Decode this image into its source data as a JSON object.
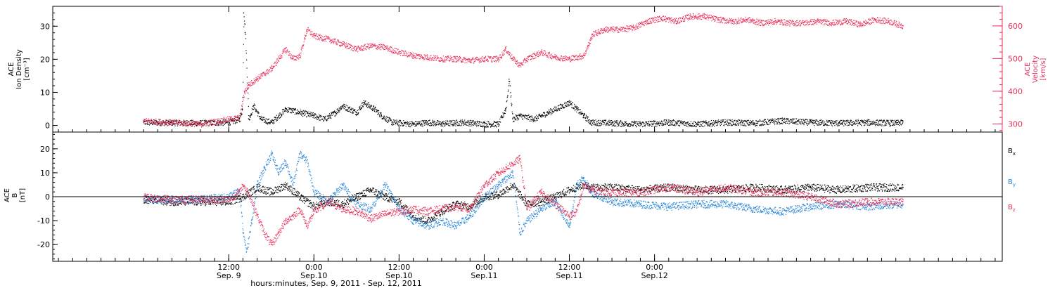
{
  "chart_data": [
    {
      "type": "scatter",
      "panel": "top",
      "left_axis": {
        "label_lines": [
          "ACE",
          "Ion Density",
          "[cm⁻³]"
        ],
        "ylim": [
          -2,
          36
        ],
        "ticks": [
          0,
          10,
          20,
          30
        ],
        "color": "#000000"
      },
      "right_axis": {
        "label_lines": [
          "ACE",
          "Velocity",
          "[km/s]"
        ],
        "ylim": [
          275,
          660
        ],
        "ticks": [
          300,
          400,
          500,
          600
        ],
        "color": "#e8305a"
      },
      "series": [
        {
          "key": "density",
          "axis": "left",
          "color": "#000000",
          "points": [
            [
              0,
              1
            ],
            [
              8,
              0.8
            ],
            [
              12,
              1
            ],
            [
              13.5,
              2
            ],
            [
              13.9,
              5
            ],
            [
              14.1,
              34
            ],
            [
              14.3,
              28
            ],
            [
              14.8,
              2
            ],
            [
              15.5,
              6
            ],
            [
              16.5,
              2
            ],
            [
              18,
              1
            ],
            [
              20,
              5
            ],
            [
              22,
              4
            ],
            [
              24,
              3
            ],
            [
              25.5,
              2
            ],
            [
              27,
              4
            ],
            [
              28,
              6
            ],
            [
              30,
              4
            ],
            [
              31,
              7
            ],
            [
              32.5,
              5
            ],
            [
              33.5,
              3
            ],
            [
              35,
              1
            ],
            [
              38,
              0.5
            ],
            [
              40,
              1
            ],
            [
              42,
              0.6
            ],
            [
              45,
              1
            ],
            [
              48,
              0.5
            ],
            [
              50,
              0.5
            ],
            [
              51,
              5
            ],
            [
              51.5,
              14
            ],
            [
              52,
              2
            ],
            [
              53,
              3
            ],
            [
              55,
              2
            ],
            [
              57,
              4
            ],
            [
              59,
              6
            ],
            [
              60,
              7
            ],
            [
              61,
              5
            ],
            [
              62,
              3
            ],
            [
              63,
              1
            ],
            [
              66,
              0.8
            ],
            [
              70,
              0.5
            ],
            [
              74,
              1
            ],
            [
              78,
              0.5
            ],
            [
              82,
              1
            ],
            [
              86,
              0.8
            ],
            [
              90,
              1.5
            ],
            [
              94,
              1
            ],
            [
              98,
              0.8
            ],
            [
              102,
              1
            ],
            [
              106,
              0.8
            ],
            [
              107,
              1
            ]
          ]
        },
        {
          "key": "velocity",
          "axis": "right",
          "color": "#e8305a",
          "points": [
            [
              0,
              310
            ],
            [
              4,
              305
            ],
            [
              8,
              300
            ],
            [
              12,
              315
            ],
            [
              13.5,
              320
            ],
            [
              14.2,
              400
            ],
            [
              14.8,
              420
            ],
            [
              16,
              440
            ],
            [
              18,
              470
            ],
            [
              20,
              530
            ],
            [
              21,
              500
            ],
            [
              22,
              510
            ],
            [
              23,
              590
            ],
            [
              24,
              570
            ],
            [
              26,
              560
            ],
            [
              28,
              545
            ],
            [
              30,
              530
            ],
            [
              32,
              540
            ],
            [
              34,
              535
            ],
            [
              36,
              520
            ],
            [
              38,
              510
            ],
            [
              40,
              505
            ],
            [
              42,
              500
            ],
            [
              44,
              500
            ],
            [
              46,
              495
            ],
            [
              48,
              500
            ],
            [
              50,
              500
            ],
            [
              51,
              530
            ],
            [
              52,
              500
            ],
            [
              53,
              480
            ],
            [
              54,
              500
            ],
            [
              56,
              520
            ],
            [
              58,
              505
            ],
            [
              60,
              500
            ],
            [
              62,
              510
            ],
            [
              63,
              560
            ],
            [
              63.2,
              575
            ],
            [
              65,
              590
            ],
            [
              67,
              590
            ],
            [
              69,
              595
            ],
            [
              71,
              615
            ],
            [
              73,
              625
            ],
            [
              75,
              615
            ],
            [
              77,
              630
            ],
            [
              79,
              630
            ],
            [
              81,
              620
            ],
            [
              83,
              615
            ],
            [
              85,
              620
            ],
            [
              87,
              610
            ],
            [
              89,
              615
            ],
            [
              91,
              610
            ],
            [
              93,
              610
            ],
            [
              95,
              615
            ],
            [
              97,
              610
            ],
            [
              99,
              615
            ],
            [
              101,
              605
            ],
            [
              103,
              620
            ],
            [
              105,
              615
            ],
            [
              107,
              600
            ]
          ]
        }
      ]
    },
    {
      "type": "scatter",
      "panel": "bottom",
      "left_axis": {
        "label_lines": [
          "ACE",
          "B",
          "[nT]"
        ],
        "ylim": [
          -27,
          27
        ],
        "ticks": [
          -20,
          -10,
          0,
          10,
          20
        ],
        "color": "#000000"
      },
      "zero_line": true,
      "legend": [
        {
          "label": "B",
          "sub": "x",
          "color": "#000000"
        },
        {
          "label": "B",
          "sub": "y",
          "color": "#2a87d8"
        },
        {
          "label": "B",
          "sub": "z",
          "color": "#e8305a"
        }
      ],
      "series": [
        {
          "key": "Bx",
          "color": "#000000",
          "points": [
            [
              0,
              -1
            ],
            [
              4,
              -2
            ],
            [
              8,
              -2
            ],
            [
              12,
              -2
            ],
            [
              14,
              0
            ],
            [
              16,
              4
            ],
            [
              18,
              2
            ],
            [
              20,
              5
            ],
            [
              22,
              0
            ],
            [
              24,
              -4
            ],
            [
              26,
              -2
            ],
            [
              28,
              -3
            ],
            [
              30,
              0
            ],
            [
              32,
              3
            ],
            [
              34,
              0
            ],
            [
              36,
              -2
            ],
            [
              38,
              -8
            ],
            [
              40,
              -10
            ],
            [
              42,
              -6
            ],
            [
              44,
              -3
            ],
            [
              46,
              -4
            ],
            [
              48,
              0
            ],
            [
              50,
              1
            ],
            [
              52,
              5
            ],
            [
              54,
              -3
            ],
            [
              56,
              -2
            ],
            [
              58,
              0
            ],
            [
              60,
              3
            ],
            [
              62,
              5
            ],
            [
              63,
              4
            ],
            [
              66,
              4
            ],
            [
              70,
              3
            ],
            [
              74,
              4
            ],
            [
              78,
              3
            ],
            [
              82,
              3
            ],
            [
              86,
              4
            ],
            [
              90,
              3
            ],
            [
              94,
              4
            ],
            [
              98,
              3
            ],
            [
              102,
              4
            ],
            [
              107,
              4
            ]
          ]
        },
        {
          "key": "By",
          "color": "#2a87d8",
          "points": [
            [
              0,
              -1
            ],
            [
              4,
              -1
            ],
            [
              8,
              -1
            ],
            [
              12,
              0
            ],
            [
              13.5,
              3
            ],
            [
              14,
              -15
            ],
            [
              14.5,
              -23
            ],
            [
              15.2,
              -10
            ],
            [
              16,
              5
            ],
            [
              17,
              12
            ],
            [
              18,
              18
            ],
            [
              19,
              10
            ],
            [
              20,
              15
            ],
            [
              21,
              5
            ],
            [
              22,
              18
            ],
            [
              23,
              15
            ],
            [
              24,
              2
            ],
            [
              26,
              -2
            ],
            [
              28,
              5
            ],
            [
              30,
              -3
            ],
            [
              32,
              -5
            ],
            [
              34,
              5
            ],
            [
              36,
              -5
            ],
            [
              38,
              -10
            ],
            [
              40,
              -12
            ],
            [
              42,
              -10
            ],
            [
              44,
              -12
            ],
            [
              46,
              -8
            ],
            [
              48,
              0
            ],
            [
              50,
              5
            ],
            [
              52,
              10
            ],
            [
              53,
              -15
            ],
            [
              54,
              -10
            ],
            [
              56,
              -5
            ],
            [
              58,
              -2
            ],
            [
              60,
              -12
            ],
            [
              61,
              5
            ],
            [
              62,
              8
            ],
            [
              63,
              2
            ],
            [
              66,
              -2
            ],
            [
              70,
              -3
            ],
            [
              74,
              -4
            ],
            [
              78,
              -3
            ],
            [
              82,
              -3
            ],
            [
              86,
              -5
            ],
            [
              90,
              -6
            ],
            [
              94,
              -4
            ],
            [
              98,
              -3
            ],
            [
              102,
              -4
            ],
            [
              107,
              -3
            ]
          ]
        },
        {
          "key": "Bz",
          "color": "#e8305a",
          "points": [
            [
              0,
              0
            ],
            [
              4,
              -1
            ],
            [
              8,
              -1
            ],
            [
              12,
              -1
            ],
            [
              13.5,
              2
            ],
            [
              14,
              5
            ],
            [
              15,
              0
            ],
            [
              16,
              -8
            ],
            [
              17,
              -15
            ],
            [
              18,
              -20
            ],
            [
              19,
              -15
            ],
            [
              20,
              -10
            ],
            [
              21,
              -8
            ],
            [
              22,
              -5
            ],
            [
              23,
              -12
            ],
            [
              24,
              -6
            ],
            [
              26,
              -2
            ],
            [
              28,
              -5
            ],
            [
              30,
              -6
            ],
            [
              32,
              -9
            ],
            [
              34,
              -7
            ],
            [
              36,
              -6
            ],
            [
              38,
              -5
            ],
            [
              40,
              -6
            ],
            [
              42,
              -5
            ],
            [
              44,
              -4
            ],
            [
              46,
              -5
            ],
            [
              48,
              5
            ],
            [
              50,
              10
            ],
            [
              52,
              14
            ],
            [
              53,
              16
            ],
            [
              54,
              -5
            ],
            [
              56,
              2
            ],
            [
              58,
              -3
            ],
            [
              60,
              -8
            ],
            [
              61,
              -6
            ],
            [
              62,
              5
            ],
            [
              63,
              3
            ],
            [
              66,
              2
            ],
            [
              70,
              2
            ],
            [
              74,
              4
            ],
            [
              78,
              2
            ],
            [
              82,
              4
            ],
            [
              86,
              2
            ],
            [
              90,
              2
            ],
            [
              94,
              0
            ],
            [
              98,
              -3
            ],
            [
              102,
              -2
            ],
            [
              107,
              -2
            ]
          ]
        }
      ]
    }
  ],
  "x_axis": {
    "xlim_hours": [
      -12.8,
      121
    ],
    "major_ticks": [
      {
        "hour": 12,
        "time": "12:00",
        "date": "Sep. 9"
      },
      {
        "hour": 24,
        "time": "0:00",
        "date": "Sep.10"
      },
      {
        "hour": 36,
        "time": "12:00",
        "date": "Sep.10"
      },
      {
        "hour": 48,
        "time": "0:00",
        "date": "Sep.11"
      },
      {
        "hour": 60,
        "time": "12:00",
        "date": "Sep.11"
      },
      {
        "hour": 72,
        "time": "0:00",
        "date": "Sep.12"
      }
    ],
    "minor_tick_step_hours": 2,
    "title": "hours:minutes, Sep.  9, 2011 - Sep. 12, 2011"
  }
}
